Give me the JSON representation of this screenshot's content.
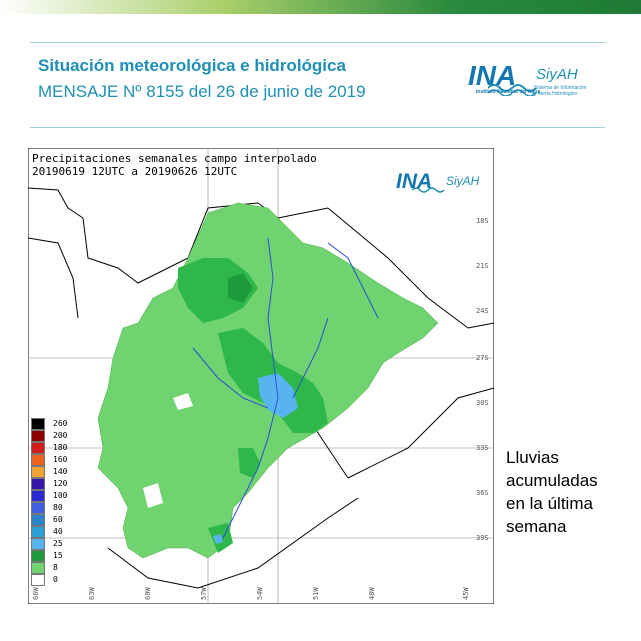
{
  "header": {
    "title": "Situación meteorológica e hidrológica",
    "subtitle": "MENSAJE Nº 8155 del 26 de junio de 2019"
  },
  "logo": {
    "ina": "INA",
    "siyah": "SiyAH",
    "org": "Instituto Nacional del Agua",
    "tagline_1": "Sistema de Información",
    "tagline_2": "y Alerta Hidrológico"
  },
  "map": {
    "title_line_1": "Precipitaciones semanales campo interpolado",
    "title_line_2": "20190619 12UTC a 20190626 12UTC",
    "lat_labels": [
      "18S",
      "21S",
      "24S",
      "27S",
      "30S",
      "33S",
      "36S",
      "39S"
    ],
    "lon_labels": [
      "66W",
      "63W",
      "60W",
      "57W",
      "54W",
      "51W",
      "48W",
      "45W"
    ],
    "colors": {
      "green_light": "#6fd36f",
      "green_mid": "#2fb84a",
      "green_dark": "#1e9a3a",
      "blue_light": "#58b4ef",
      "border": "#000000",
      "river": "#2a50d8",
      "province": "#808080",
      "grid": "#8a8a8a"
    }
  },
  "legend": {
    "items": [
      {
        "label": "260",
        "color": "#000000"
      },
      {
        "label": "200",
        "color": "#8e0000"
      },
      {
        "label": "180",
        "color": "#d21b1b"
      },
      {
        "label": "160",
        "color": "#ee6220"
      },
      {
        "label": "140",
        "color": "#f3a332"
      },
      {
        "label": "120",
        "color": "#3a16a8"
      },
      {
        "label": "100",
        "color": "#2a2ad4"
      },
      {
        "label": "80",
        "color": "#3f5fe0"
      },
      {
        "label": "60",
        "color": "#2b84c8"
      },
      {
        "label": "40",
        "color": "#2aa0d8"
      },
      {
        "label": "25",
        "color": "#58b4ef"
      },
      {
        "label": "15",
        "color": "#1e9a3a"
      },
      {
        "label": "8",
        "color": "#6fd36f"
      },
      {
        "label": "0",
        "color": "#ffffff"
      }
    ]
  },
  "caption": {
    "line_1": "Lluvias",
    "line_2": "acumuladas",
    "line_3": "en la última",
    "line_4": "semana"
  }
}
